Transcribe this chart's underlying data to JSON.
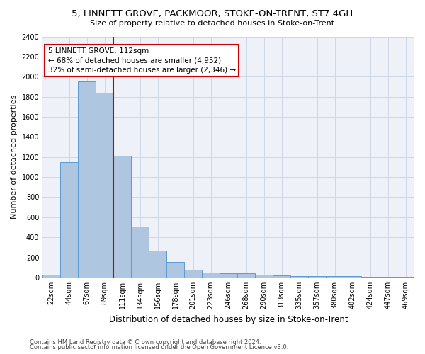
{
  "title": "5, LINNETT GROVE, PACKMOOR, STOKE-ON-TRENT, ST7 4GH",
  "subtitle": "Size of property relative to detached houses in Stoke-on-Trent",
  "xlabel": "Distribution of detached houses by size in Stoke-on-Trent",
  "ylabel": "Number of detached properties",
  "footnote1": "Contains HM Land Registry data © Crown copyright and database right 2024.",
  "footnote2": "Contains public sector information licensed under the Open Government Licence v3.0.",
  "bin_labels": [
    "22sqm",
    "44sqm",
    "67sqm",
    "89sqm",
    "111sqm",
    "134sqm",
    "156sqm",
    "178sqm",
    "201sqm",
    "223sqm",
    "246sqm",
    "268sqm",
    "290sqm",
    "313sqm",
    "335sqm",
    "357sqm",
    "380sqm",
    "402sqm",
    "424sqm",
    "447sqm",
    "469sqm"
  ],
  "bar_values": [
    30,
    1150,
    1950,
    1840,
    1210,
    510,
    265,
    155,
    80,
    50,
    45,
    40,
    25,
    20,
    15,
    15,
    15,
    15,
    10,
    10,
    10
  ],
  "bar_color": "#aec6df",
  "bar_edge_color": "#5b9bd5",
  "vline_color": "#cc0000",
  "vline_index": 4,
  "annotation_text": "5 LINNETT GROVE: 112sqm\n← 68% of detached houses are smaller (4,952)\n32% of semi-detached houses are larger (2,346) →",
  "annotation_box_color": "#cc0000",
  "ylim": [
    0,
    2400
  ],
  "yticks": [
    0,
    200,
    400,
    600,
    800,
    1000,
    1200,
    1400,
    1600,
    1800,
    2000,
    2200,
    2400
  ],
  "grid_color": "#d0d8e8",
  "background_color": "#eef2f8",
  "title_fontsize": 9.5,
  "subtitle_fontsize": 8,
  "ylabel_fontsize": 8,
  "xlabel_fontsize": 8.5,
  "tick_fontsize": 7,
  "footnote_fontsize": 6,
  "annotation_fontsize": 7.5
}
